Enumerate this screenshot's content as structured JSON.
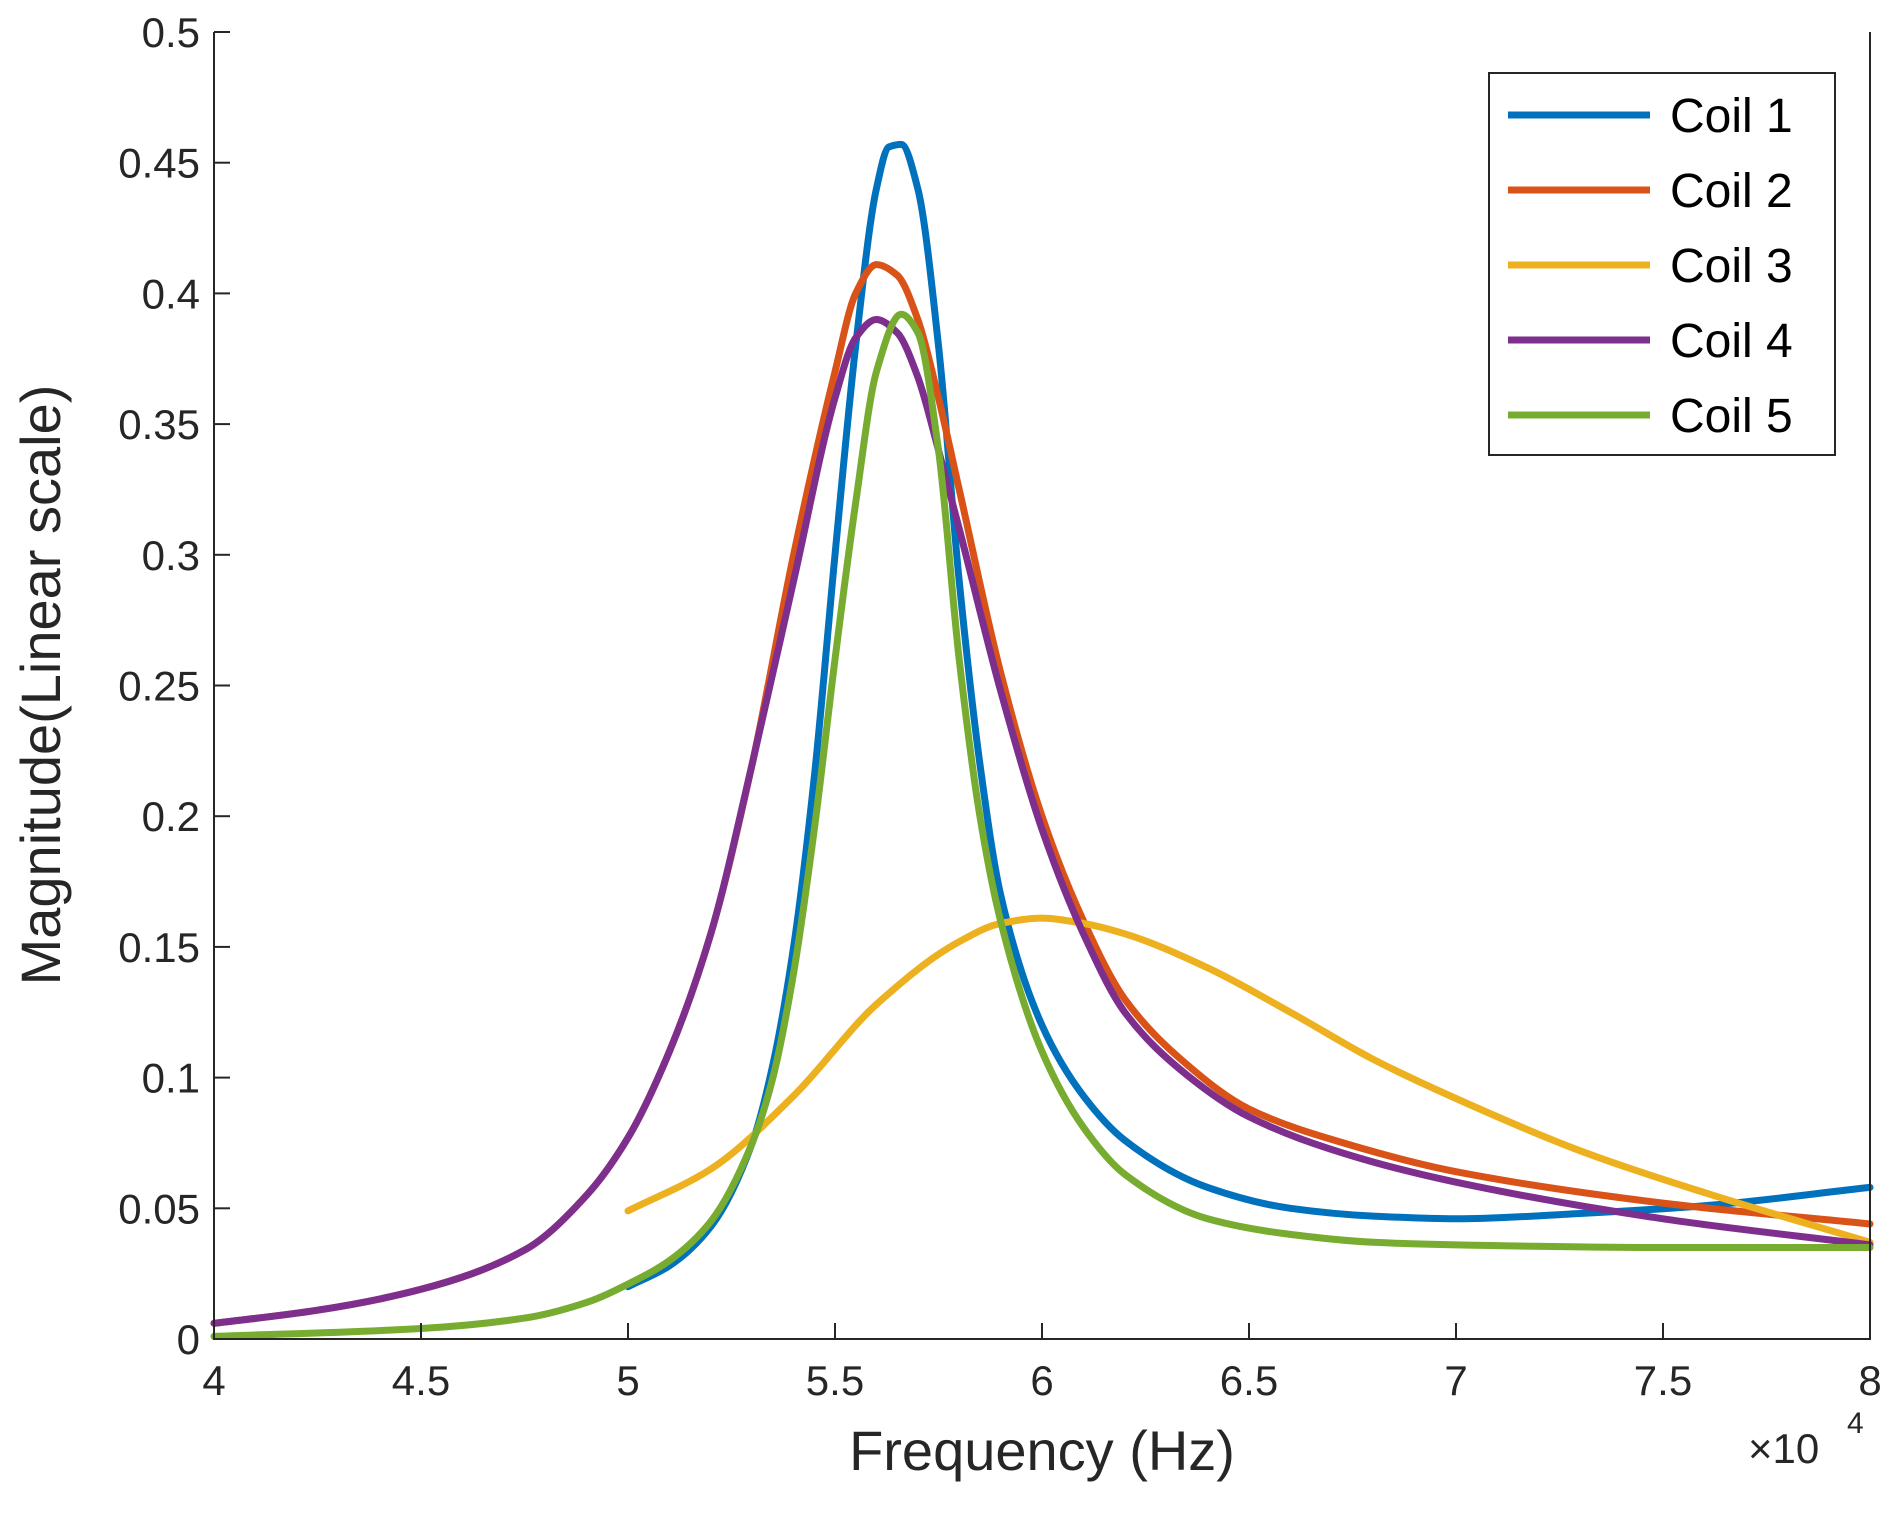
{
  "chart_data": {
    "type": "line",
    "title": "",
    "xlabel": "Frequency (Hz)",
    "ylabel": "Magnitude(Linear scale)",
    "x_multiplier_label": "×10",
    "x_multiplier_exponent": "4",
    "xlim": [
      4,
      8
    ],
    "ylim": [
      0,
      0.5
    ],
    "xticks": [
      4,
      4.5,
      5,
      5.5,
      6,
      6.5,
      7,
      7.5,
      8
    ],
    "xtick_labels": [
      "4",
      "4.5",
      "5",
      "5.5",
      "6",
      "6.5",
      "7",
      "7.5",
      "8"
    ],
    "yticks": [
      0,
      0.05,
      0.1,
      0.15,
      0.2,
      0.25,
      0.3,
      0.35,
      0.4,
      0.45,
      0.5
    ],
    "ytick_labels": [
      "0",
      "0.05",
      "0.1",
      "0.15",
      "0.2",
      "0.25",
      "0.3",
      "0.35",
      "0.4",
      "0.45",
      "0.5"
    ],
    "legend_position": "top-right",
    "series": [
      {
        "name": "Coil 1",
        "color": "#0072BD",
        "x": [
          5.0,
          5.1,
          5.2,
          5.3,
          5.35,
          5.4,
          5.45,
          5.5,
          5.55,
          5.6,
          5.63,
          5.66,
          5.7,
          5.75,
          5.8,
          5.85,
          5.9,
          6.0,
          6.1,
          6.2,
          6.4,
          6.6,
          6.8,
          7.0,
          7.3,
          7.6,
          8.0
        ],
        "y": [
          0.02,
          0.028,
          0.043,
          0.075,
          0.105,
          0.15,
          0.215,
          0.3,
          0.38,
          0.44,
          0.456,
          0.457,
          0.44,
          0.38,
          0.29,
          0.22,
          0.17,
          0.12,
          0.093,
          0.076,
          0.058,
          0.05,
          0.047,
          0.046,
          0.048,
          0.051,
          0.058
        ]
      },
      {
        "name": "Coil 2",
        "color": "#D95319",
        "x": [
          4.0,
          4.25,
          4.5,
          4.75,
          4.9,
          5.0,
          5.1,
          5.2,
          5.3,
          5.4,
          5.5,
          5.55,
          5.6,
          5.65,
          5.7,
          5.75,
          5.8,
          5.9,
          6.0,
          6.1,
          6.2,
          6.35,
          6.5,
          6.75,
          7.0,
          7.5,
          8.0
        ],
        "y": [
          0.006,
          0.011,
          0.019,
          0.034,
          0.055,
          0.077,
          0.11,
          0.155,
          0.22,
          0.3,
          0.37,
          0.4,
          0.411,
          0.407,
          0.39,
          0.36,
          0.325,
          0.255,
          0.2,
          0.16,
          0.13,
          0.105,
          0.088,
          0.074,
          0.064,
          0.052,
          0.044
        ]
      },
      {
        "name": "Coil 3",
        "color": "#EDB120",
        "x": [
          5.0,
          5.2,
          5.4,
          5.6,
          5.8,
          5.9,
          6.0,
          6.1,
          6.2,
          6.4,
          6.6,
          6.8,
          7.0,
          7.3,
          7.6,
          8.0
        ],
        "y": [
          0.049,
          0.065,
          0.093,
          0.128,
          0.152,
          0.159,
          0.161,
          0.159,
          0.155,
          0.142,
          0.125,
          0.107,
          0.092,
          0.072,
          0.056,
          0.037
        ]
      },
      {
        "name": "Coil 4",
        "color": "#7E2F8E",
        "x": [
          4.0,
          4.25,
          4.5,
          4.75,
          4.9,
          5.0,
          5.1,
          5.2,
          5.3,
          5.4,
          5.5,
          5.55,
          5.6,
          5.65,
          5.7,
          5.75,
          5.8,
          5.9,
          6.0,
          6.1,
          6.2,
          6.35,
          6.5,
          6.75,
          7.0,
          7.5,
          8.0
        ],
        "y": [
          0.006,
          0.011,
          0.019,
          0.034,
          0.055,
          0.077,
          0.11,
          0.155,
          0.22,
          0.29,
          0.36,
          0.383,
          0.39,
          0.385,
          0.368,
          0.34,
          0.31,
          0.248,
          0.195,
          0.155,
          0.125,
          0.101,
          0.085,
          0.07,
          0.06,
          0.046,
          0.036
        ]
      },
      {
        "name": "Coil 5",
        "color": "#77AC30",
        "x": [
          4.0,
          4.5,
          4.75,
          4.9,
          5.0,
          5.1,
          5.2,
          5.3,
          5.35,
          5.4,
          5.45,
          5.5,
          5.55,
          5.6,
          5.66,
          5.7,
          5.75,
          5.8,
          5.85,
          5.9,
          6.0,
          6.1,
          6.2,
          6.4,
          6.6,
          6.8,
          7.0,
          7.5,
          8.0
        ],
        "y": [
          0.001,
          0.004,
          0.008,
          0.014,
          0.021,
          0.03,
          0.045,
          0.075,
          0.1,
          0.14,
          0.195,
          0.26,
          0.32,
          0.37,
          0.392,
          0.385,
          0.34,
          0.26,
          0.2,
          0.16,
          0.11,
          0.081,
          0.063,
          0.046,
          0.04,
          0.037,
          0.036,
          0.035,
          0.035
        ]
      }
    ]
  }
}
